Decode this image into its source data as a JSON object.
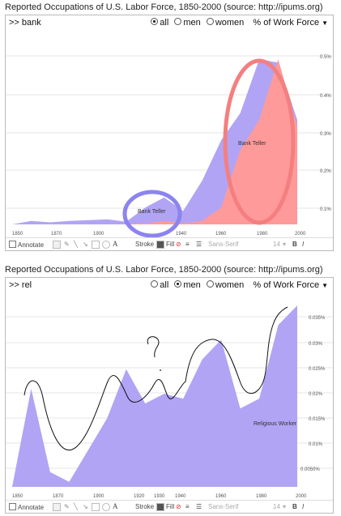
{
  "panels": [
    {
      "title": "Reported Occupations of U.S. Labor Force, 1850-2000 (source: http://ipums.org)",
      "query": ">> bank",
      "sex_filter": {
        "options": [
          "all",
          "men",
          "women"
        ],
        "selected": "all"
      },
      "measure_label": "% of Work Force",
      "x_ticks": [
        "1850",
        "1870",
        "1900",
        "1940",
        "1960",
        "1980",
        "2000"
      ],
      "y_ticks": [
        "0.5%",
        "0.4%",
        "0.3%",
        "0.2%",
        "0.1%"
      ],
      "annotations": [
        "Bank Teller",
        "Bank Teller"
      ],
      "toolbar": {
        "annotate": "Annotate",
        "stroke": "Stroke",
        "fill": "Fill",
        "font": "Sans-Serif",
        "size": "14",
        "bold": "B",
        "italic": "I"
      }
    },
    {
      "title": "Reported Occupations of U.S. Labor Force, 1850-2000 (source: http://ipums.org)",
      "query": ">> rel",
      "sex_filter": {
        "options": [
          "all",
          "men",
          "women"
        ],
        "selected": "men"
      },
      "measure_label": "% of Work Force",
      "x_ticks": [
        "1850",
        "1870",
        "1900",
        "1920",
        "1930",
        "1940",
        "1960",
        "1980",
        "2000"
      ],
      "y_ticks": [
        "0.035%",
        "0.03%",
        "0.025%",
        "0.02%",
        "0.015%",
        "0.01%",
        "0.0050%"
      ],
      "annotations": [
        "Religious Worker"
      ],
      "toolbar": {
        "annotate": "Annotate",
        "stroke": "Stroke",
        "fill": "Fill",
        "font": "Sans-Serif",
        "size": "14",
        "bold": "B",
        "italic": "I"
      }
    }
  ],
  "chart_data": [
    {
      "type": "area",
      "title": "Reported Occupations of U.S. Labor Force, 1850-2000",
      "xlabel": "",
      "ylabel": "% of Work Force",
      "x": [
        1850,
        1860,
        1870,
        1880,
        1900,
        1910,
        1920,
        1930,
        1940,
        1950,
        1960,
        1970,
        1980,
        1990,
        2000
      ],
      "ylim": [
        0,
        0.5
      ],
      "series": [
        {
          "name": "Bank Teller (women)",
          "color": "#ff9a9a",
          "values": [
            0,
            0,
            0,
            0,
            0,
            0,
            0.003,
            0.01,
            0.003,
            0.01,
            0.05,
            0.22,
            0.31,
            0.49,
            0.29
          ]
        },
        {
          "name": "Bank Teller (total)",
          "color": "#b1a4f5",
          "values": [
            0,
            0.01,
            0.006,
            0.01,
            0.015,
            0.008,
            0.05,
            0.08,
            0.04,
            0.13,
            0.25,
            0.33,
            0.49,
            0.48,
            0.31
          ]
        }
      ]
    },
    {
      "type": "area",
      "title": "Reported Occupations of U.S. Labor Force, 1850-2000",
      "xlabel": "",
      "ylabel": "% of Work Force",
      "x": [
        1850,
        1860,
        1870,
        1880,
        1900,
        1910,
        1920,
        1930,
        1940,
        1950,
        1960,
        1970,
        1980,
        1990,
        2000
      ],
      "ylim": [
        0,
        0.038
      ],
      "series": [
        {
          "name": "Religious Worker (men)",
          "color": "#b1a4f5",
          "values": [
            0,
            0.02,
            0.003,
            0.001,
            0.014,
            0.024,
            0.017,
            0.019,
            0.018,
            0.026,
            0.03,
            0.016,
            0.018,
            0.033,
            0.037
          ]
        }
      ]
    }
  ]
}
